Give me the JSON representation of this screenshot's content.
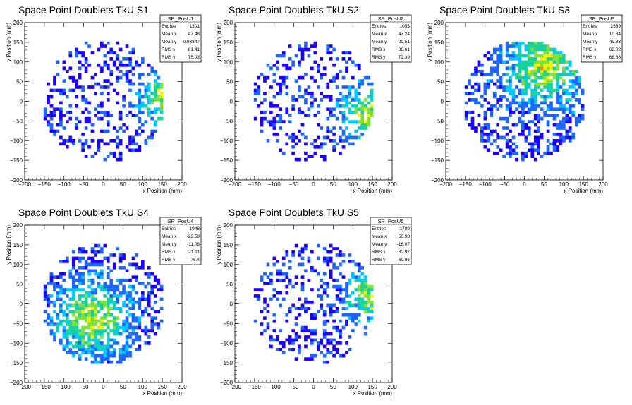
{
  "colors": {
    "palette": [
      "#1b00ff",
      "#1a66ff",
      "#00c8ff",
      "#19d19a",
      "#7fe03a",
      "#f0f000",
      "#ff8000",
      "#ff0000"
    ],
    "axis": "#000000",
    "frame": "#000000"
  },
  "chart_data": [
    {
      "type": "heatmap",
      "title": "Space Point Doublets TkU S1",
      "xlabel": "x Position (mm)",
      "ylabel": "y Position (mm)",
      "xlim": [
        -200,
        200
      ],
      "ylim": [
        -200,
        200
      ],
      "xticks": [
        "−200",
        "−150",
        "−100",
        "−50",
        "0",
        "50",
        "100",
        "150",
        "200"
      ],
      "yticks": [
        "−200",
        "−150",
        "−100",
        "−50",
        "0",
        "50",
        "100",
        "150",
        "200"
      ],
      "stats": {
        "name": "SP_PosU1",
        "rows": [
          [
            "Entries",
            "1301"
          ],
          [
            "Mean x",
            "47.48"
          ],
          [
            "Mean y",
            "-0.03847"
          ],
          [
            "RMS x",
            "81.41"
          ],
          [
            "RMS y",
            "75.03"
          ]
        ]
      },
      "hotspot": {
        "x": 155,
        "y": 10,
        "spread": 45
      },
      "density": 0.55,
      "seed": 11
    },
    {
      "type": "heatmap",
      "title": "Space Point Doublets TkU S2",
      "xlabel": "x Position (mm)",
      "ylabel": "y Position (mm)",
      "xlim": [
        -200,
        200
      ],
      "ylim": [
        -200,
        200
      ],
      "xticks": [
        "−200",
        "−150",
        "−100",
        "−50",
        "0",
        "50",
        "100",
        "150",
        "200"
      ],
      "yticks": [
        "−200",
        "−150",
        "−100",
        "−50",
        "0",
        "50",
        "100",
        "150",
        "200"
      ],
      "stats": {
        "name": "SP_PosU2",
        "rows": [
          [
            "Entries",
            "1053"
          ],
          [
            "Mean x",
            "47.24"
          ],
          [
            "Mean y",
            "-29.51"
          ],
          [
            "RMS x",
            "86.61"
          ],
          [
            "RMS y",
            "72.39"
          ]
        ]
      },
      "hotspot": {
        "x": 140,
        "y": -30,
        "spread": 50
      },
      "density": 0.45,
      "seed": 23
    },
    {
      "type": "heatmap",
      "title": "Space Point Doublets TkU S3",
      "xlabel": "x Position (mm)",
      "ylabel": "y Position (mm)",
      "xlim": [
        -200,
        200
      ],
      "ylim": [
        -200,
        200
      ],
      "xticks": [
        "−200",
        "−150",
        "−100",
        "−50",
        "0",
        "50",
        "100",
        "150",
        "200"
      ],
      "yticks": [
        "−200",
        "−150",
        "−100",
        "−50",
        "0",
        "50",
        "100",
        "150",
        "200"
      ],
      "stats": {
        "name": "SP_PosU3",
        "rows": [
          [
            "Entries",
            "2569"
          ],
          [
            "Mean x",
            "10.34"
          ],
          [
            "Mean y",
            "49.83"
          ],
          [
            "RMS x",
            "68.02"
          ],
          [
            "RMS y",
            "68.88"
          ]
        ]
      },
      "hotspot": {
        "x": 50,
        "y": 90,
        "spread": 70
      },
      "density": 0.7,
      "seed": 37
    },
    {
      "type": "heatmap",
      "title": "Space Point Doublets TkU S4",
      "xlabel": "x Position (mm)",
      "ylabel": "y Position (mm)",
      "xlim": [
        -200,
        200
      ],
      "ylim": [
        -200,
        200
      ],
      "xticks": [
        "−200",
        "−150",
        "−100",
        "−50",
        "0",
        "50",
        "100",
        "150",
        "200"
      ],
      "yticks": [
        "−200",
        "−150",
        "−100",
        "−50",
        "0",
        "50",
        "100",
        "150",
        "200"
      ],
      "stats": {
        "name": "SP_PosU4",
        "rows": [
          [
            "Entries",
            "1948"
          ],
          [
            "Mean x",
            "-23.59"
          ],
          [
            "Mean y",
            "-11.08"
          ],
          [
            "RMS x",
            "71.11"
          ],
          [
            "RMS y",
            "76.4"
          ]
        ]
      },
      "hotspot": {
        "x": -30,
        "y": -40,
        "spread": 65
      },
      "density": 0.62,
      "seed": 53
    },
    {
      "type": "heatmap",
      "title": "Space Point Doublets TkU S5",
      "xlabel": "x Position (mm)",
      "ylabel": "y Position (mm)",
      "xlim": [
        -200,
        200
      ],
      "ylim": [
        -200,
        200
      ],
      "xticks": [
        "−200",
        "−150",
        "−100",
        "−50",
        "0",
        "50",
        "100",
        "150",
        "200"
      ],
      "yticks": [
        "−200",
        "−150",
        "−100",
        "−50",
        "0",
        "50",
        "100",
        "150",
        "200"
      ],
      "stats": {
        "name": "SP_PosU5",
        "rows": [
          [
            "Entries",
            "1789"
          ],
          [
            "Mean x",
            "56.98"
          ],
          [
            "Mean y",
            "-18.07"
          ],
          [
            "RMS x",
            "80.97"
          ],
          [
            "RMS y",
            "69.96"
          ]
        ]
      },
      "hotspot": {
        "x": 150,
        "y": 20,
        "spread": 45
      },
      "density": 0.5,
      "seed": 71
    }
  ]
}
